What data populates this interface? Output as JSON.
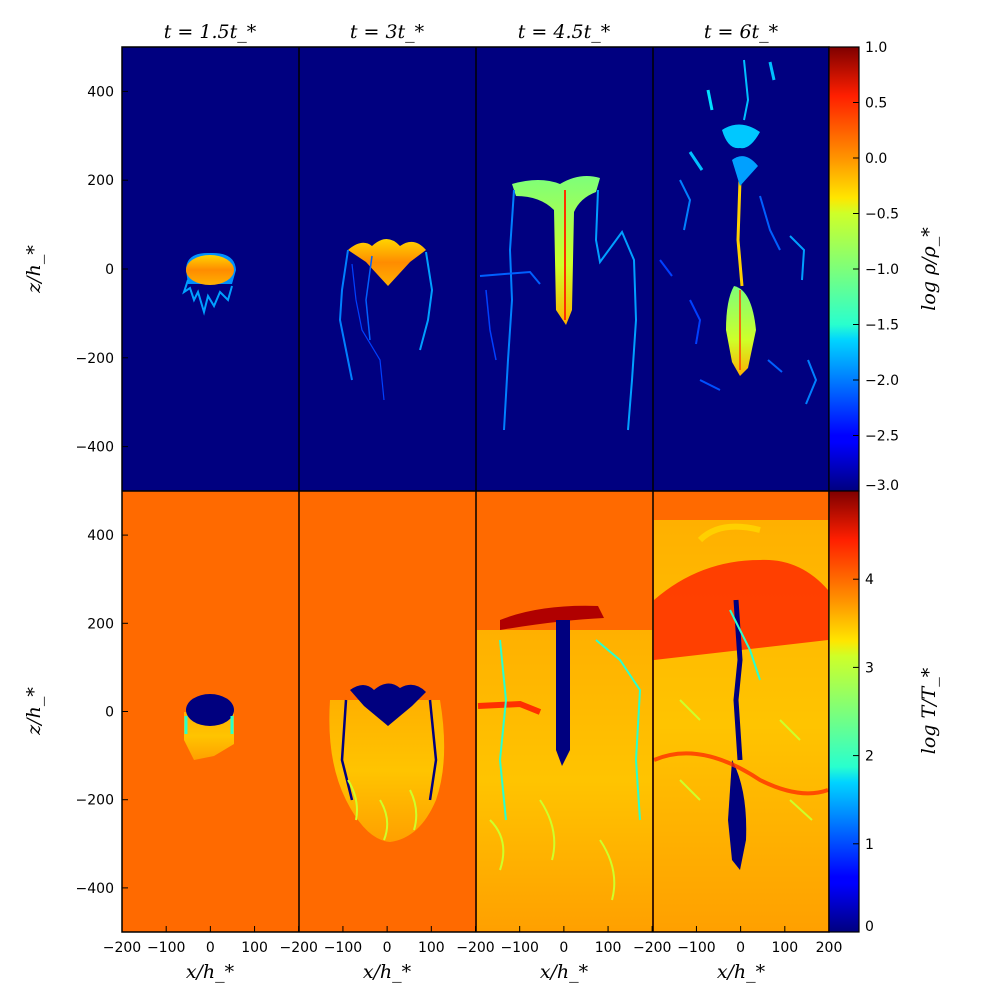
{
  "chart_data": {
    "type": "heatmap",
    "layout": "2 rows x 4 columns of image panels with shared colorbars per row",
    "columns": [
      {
        "title": "t = 1.5t_*",
        "time_in_t_star": 1.5
      },
      {
        "title": "t = 3t_*",
        "time_in_t_star": 3
      },
      {
        "title": "t = 4.5t_*",
        "time_in_t_star": 4.5
      },
      {
        "title": "t = 6t_*",
        "time_in_t_star": 6
      }
    ],
    "xlabel": "x/h_*",
    "ylabel": "z/h_*",
    "xlim": [
      -200,
      200
    ],
    "ylim": [
      -500,
      500
    ],
    "xticks": [
      -200,
      -100,
      0,
      100,
      200
    ],
    "xticklabels": [
      "−200",
      "−100",
      "0",
      "100",
      "200"
    ],
    "yticks": [
      -400,
      -200,
      0,
      200,
      400
    ],
    "yticklabels": [
      "−400",
      "−200",
      "0",
      "200",
      "400"
    ],
    "rows": [
      {
        "quantity": "log ρ/ρ_*",
        "colorbar_label": "log ρ/ρ_*",
        "colormap": "jet",
        "clim": [
          -3.0,
          1.0
        ],
        "cticks": [
          1.0,
          0.5,
          0.0,
          -0.5,
          -1.0,
          -1.5,
          -2.0,
          -2.5,
          -3.0
        ],
        "cticklabels": [
          "1.0",
          "0.5",
          "0.0",
          "−0.5",
          "−1.0",
          "−1.5",
          "−2.0",
          "−2.5",
          "−3.0"
        ],
        "background_value": -3.0
      },
      {
        "quantity": "log T/T_*",
        "colorbar_label": "log T/T_*",
        "colormap": "jet",
        "clim": [
          0,
          5
        ],
        "cticks": [
          4,
          3,
          2,
          1,
          0
        ],
        "cticklabels": [
          "4",
          "3",
          "2",
          "1",
          "0"
        ],
        "background_value": 4.0
      }
    ]
  },
  "colors": {
    "density_background": "#000080",
    "temperature_background": "#ff6a00",
    "cold_dense_gas": "#00007f",
    "hot_shell": "#b00000",
    "frame": "#000000"
  }
}
